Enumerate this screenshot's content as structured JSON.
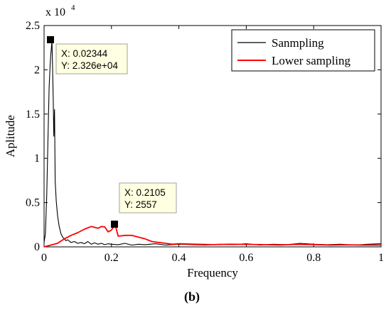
{
  "chart_data": {
    "type": "line",
    "x_axis": {
      "label": "Frequency",
      "lim": [
        0,
        1
      ],
      "ticks": [
        0,
        0.2,
        0.4,
        0.6,
        0.8,
        1
      ],
      "tick_labels": [
        "0",
        "0.2",
        "0.4",
        "0.6",
        "0.8",
        "1"
      ]
    },
    "y_axis": {
      "label": "Aplitude",
      "lim": [
        0,
        25000
      ],
      "ticks": [
        0,
        5000,
        10000,
        15000,
        20000,
        25000
      ],
      "tick_labels": [
        "0",
        "0.5",
        "1",
        "1.5",
        "2",
        "2.5"
      ],
      "exponent_label": "x 10",
      "exponent_power": "4"
    },
    "grid": false,
    "legend": {
      "placement": "top-right",
      "entries": [
        "Sanmpling",
        "Lower sampling"
      ]
    },
    "series": [
      {
        "name": "Sanmpling",
        "color": "#000000",
        "x": [
          0,
          0.004,
          0.008,
          0.012,
          0.015,
          0.018,
          0.02,
          0.022,
          0.02344,
          0.025,
          0.027,
          0.029,
          0.031,
          0.033,
          0.036,
          0.04,
          0.045,
          0.05,
          0.055,
          0.06,
          0.065,
          0.07,
          0.08,
          0.09,
          0.1,
          0.11,
          0.12,
          0.13,
          0.14,
          0.15,
          0.16,
          0.17,
          0.18,
          0.19,
          0.2,
          0.22,
          0.24,
          0.26,
          0.28,
          0.3,
          0.33,
          0.36,
          0.4,
          0.44,
          0.48,
          0.52,
          0.56,
          0.6,
          0.64,
          0.68,
          0.72,
          0.76,
          0.8,
          0.84,
          0.88,
          0.92,
          0.96,
          1.0
        ],
        "y": [
          500,
          1500,
          6000,
          13000,
          18000,
          20500,
          21800,
          22600,
          23260,
          20800,
          17000,
          12500,
          15500,
          7500,
          5200,
          3500,
          2300,
          1500,
          1100,
          900,
          700,
          800,
          500,
          600,
          400,
          500,
          350,
          600,
          300,
          450,
          300,
          400,
          250,
          350,
          300,
          250,
          400,
          200,
          300,
          250,
          350,
          200,
          300,
          250,
          200,
          300,
          250,
          350,
          200,
          300,
          250,
          400,
          300,
          250,
          300,
          200,
          300,
          350
        ]
      },
      {
        "name": "Lower sampling",
        "color": "#ff0000",
        "x": [
          0,
          0.02,
          0.04,
          0.06,
          0.08,
          0.1,
          0.12,
          0.14,
          0.16,
          0.17,
          0.18,
          0.19,
          0.2,
          0.2105,
          0.22,
          0.24,
          0.26,
          0.28,
          0.3,
          0.32,
          0.34,
          0.36,
          0.38,
          0.4,
          0.45,
          0.5,
          0.55,
          0.6,
          0.65,
          0.7,
          0.75,
          0.8,
          0.85,
          0.9,
          0.95,
          1.0
        ],
        "y": [
          0,
          200,
          400,
          900,
          1300,
          1600,
          2000,
          2300,
          2100,
          2300,
          2250,
          1700,
          1900,
          2557,
          1200,
          1300,
          1300,
          1100,
          900,
          600,
          500,
          400,
          300,
          350,
          300,
          250,
          300,
          280,
          250,
          220,
          280,
          250,
          200,
          230,
          200,
          200
        ]
      }
    ],
    "datatips": [
      {
        "x": 0.02344,
        "y": 23260,
        "label_x": "X: 0.02344",
        "label_y": "Y: 2.326e+04"
      },
      {
        "x": 0.2105,
        "y": 2557,
        "label_x": "X: 0.2105",
        "label_y": "Y: 2557"
      }
    ]
  },
  "panel_label": "(b)"
}
